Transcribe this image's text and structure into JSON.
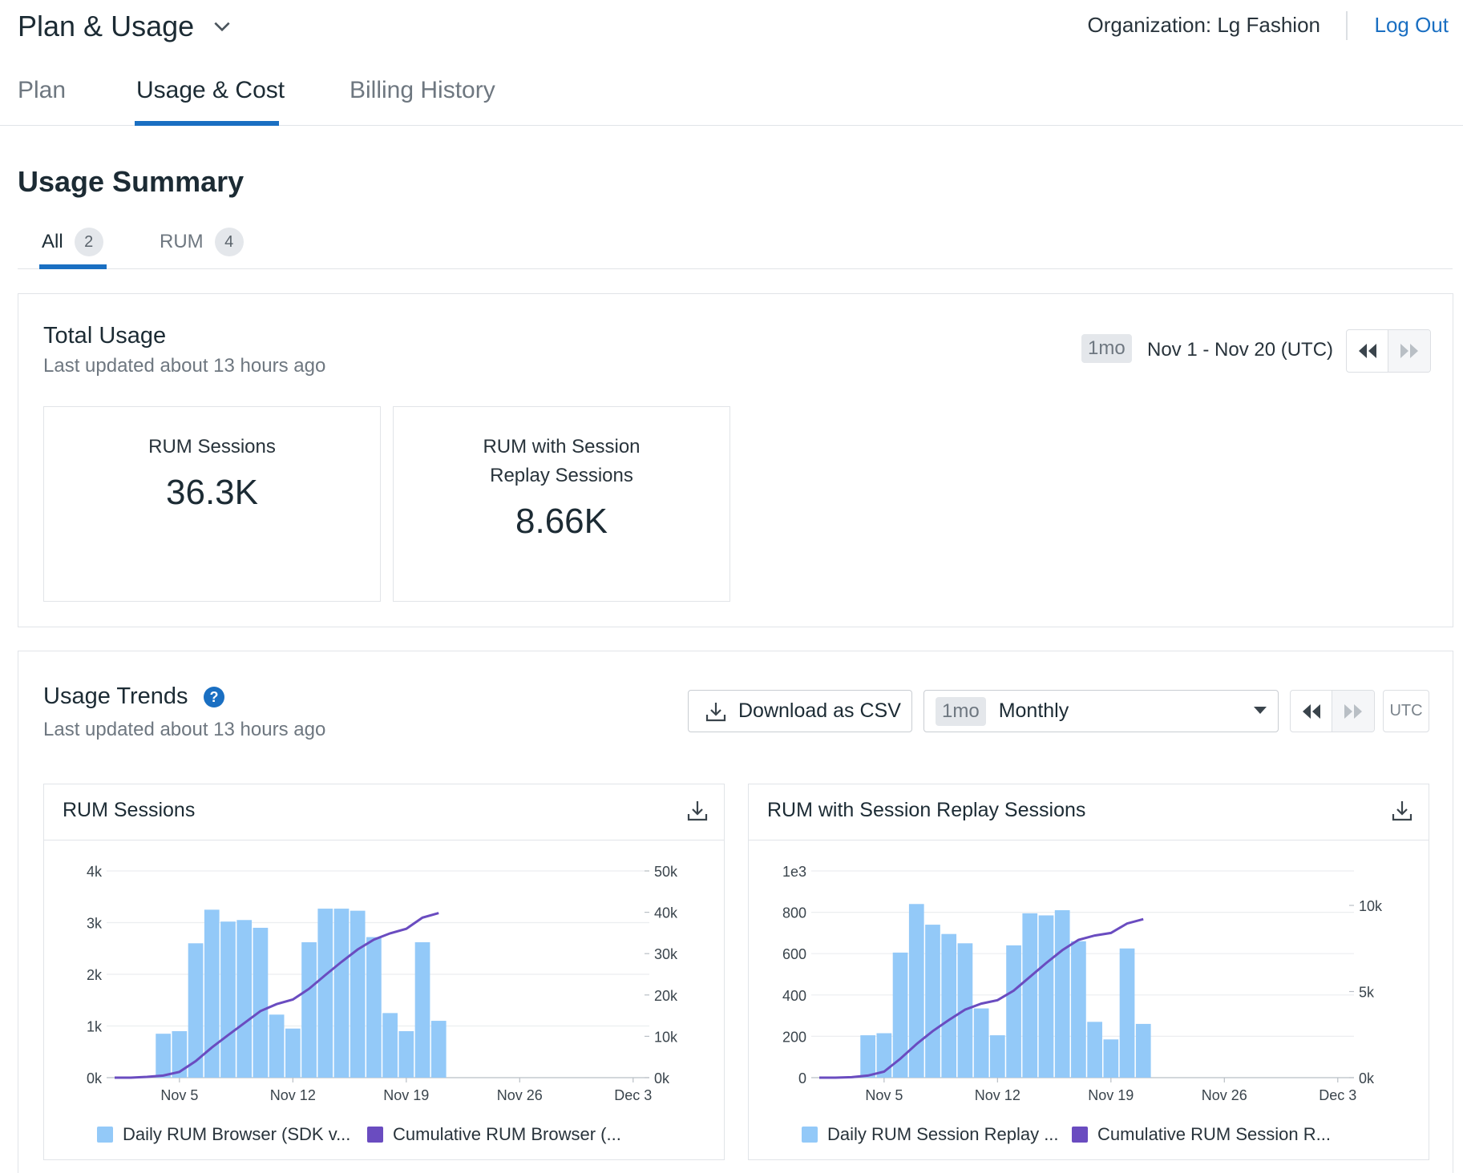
{
  "header": {
    "title": "Plan & Usage",
    "organization": "Organization: Lg Fashion",
    "logout": "Log Out"
  },
  "tabs": [
    {
      "label": "Plan",
      "active": false
    },
    {
      "label": "Usage & Cost",
      "active": true
    },
    {
      "label": "Billing History",
      "active": false
    }
  ],
  "summary": {
    "title": "Usage Summary",
    "subtabs": [
      {
        "label": "All",
        "count": "2",
        "active": true
      },
      {
        "label": "RUM",
        "count": "4",
        "active": false
      }
    ]
  },
  "total_usage": {
    "title": "Total Usage",
    "updated": "Last updated about 13 hours ago",
    "range_tag": "1mo",
    "range_text": "Nov 1 - Nov 20 (UTC)",
    "cards": [
      {
        "label": "RUM Sessions",
        "value": "36.3K"
      },
      {
        "label": "RUM with Session Replay Sessions",
        "value": "8.66K"
      }
    ]
  },
  "usage_trends": {
    "title": "Usage Trends",
    "updated": "Last updated about 13 hours ago",
    "download_label": "Download as CSV",
    "period_tag": "1mo",
    "period_value": "Monthly",
    "utc_label": "UTC"
  },
  "colors": {
    "accent": "#1a6fc2",
    "bar": "#93c9f8",
    "line": "#6a4cc0",
    "help": "#1a6fc2"
  },
  "chart_data": [
    {
      "type": "bar",
      "title": "RUM Sessions",
      "x": [
        "Nov 1",
        "Nov 2",
        "Nov 3",
        "Nov 4",
        "Nov 5",
        "Nov 6",
        "Nov 7",
        "Nov 8",
        "Nov 9",
        "Nov 10",
        "Nov 11",
        "Nov 12",
        "Nov 13",
        "Nov 14",
        "Nov 15",
        "Nov 16",
        "Nov 17",
        "Nov 18",
        "Nov 19",
        "Nov 20",
        "Nov 21"
      ],
      "x_ticks": [
        "Nov 5",
        "Nov 12",
        "Nov 19",
        "Nov 26",
        "Dec 3"
      ],
      "series": [
        {
          "name": "Daily RUM Browser (SDK v...",
          "axis": "left",
          "values": [
            0,
            0,
            0,
            850,
            900,
            2600,
            3250,
            3020,
            3050,
            2900,
            1220,
            950,
            2620,
            3270,
            3270,
            3230,
            2720,
            1250,
            900,
            2620,
            1100
          ]
        },
        {
          "name": "Cumulative RUM Browser (...",
          "axis": "right",
          "type": "line",
          "values": [
            0,
            0,
            200,
            500,
            1400,
            4000,
            7300,
            10300,
            13200,
            16100,
            17800,
            18900,
            21500,
            24800,
            28000,
            31000,
            33400,
            34900,
            36000,
            38700,
            39800
          ]
        }
      ],
      "y_left": {
        "ticks": [
          "0k",
          "1k",
          "2k",
          "3k",
          "4k"
        ],
        "range": [
          0,
          4000
        ]
      },
      "y_right": {
        "ticks": [
          "0k",
          "10k",
          "20k",
          "30k",
          "40k",
          "50k"
        ],
        "range": [
          0,
          50000
        ]
      },
      "legend": [
        "Daily RUM Browser (SDK v...",
        "Cumulative RUM Browser (..."
      ]
    },
    {
      "type": "bar",
      "title": "RUM with Session Replay Sessions",
      "x": [
        "Nov 1",
        "Nov 2",
        "Nov 3",
        "Nov 4",
        "Nov 5",
        "Nov 6",
        "Nov 7",
        "Nov 8",
        "Nov 9",
        "Nov 10",
        "Nov 11",
        "Nov 12",
        "Nov 13",
        "Nov 14",
        "Nov 15",
        "Nov 16",
        "Nov 17",
        "Nov 18",
        "Nov 19",
        "Nov 20",
        "Nov 21"
      ],
      "x_ticks": [
        "Nov 5",
        "Nov 12",
        "Nov 19",
        "Nov 26",
        "Dec 3"
      ],
      "series": [
        {
          "name": "Daily RUM Session Replay ...",
          "axis": "left",
          "values": [
            0,
            0,
            0,
            205,
            215,
            605,
            840,
            740,
            695,
            650,
            335,
            205,
            640,
            795,
            785,
            810,
            660,
            270,
            185,
            625,
            260
          ]
        },
        {
          "name": "Cumulative RUM Session R...",
          "axis": "right",
          "type": "line",
          "values": [
            0,
            0,
            30,
            120,
            350,
            1100,
            1950,
            2700,
            3350,
            3950,
            4300,
            4500,
            5050,
            5850,
            6650,
            7400,
            8000,
            8250,
            8400,
            8950,
            9200
          ]
        }
      ],
      "y_left": {
        "ticks": [
          "0",
          "200",
          "400",
          "600",
          "800",
          "1e3"
        ],
        "range": [
          0,
          1000
        ]
      },
      "y_right": {
        "ticks": [
          "0k",
          "5k",
          "10k"
        ],
        "range": [
          0,
          12000
        ]
      },
      "legend": [
        "Daily RUM Session Replay ...",
        "Cumulative RUM Session R..."
      ]
    }
  ]
}
